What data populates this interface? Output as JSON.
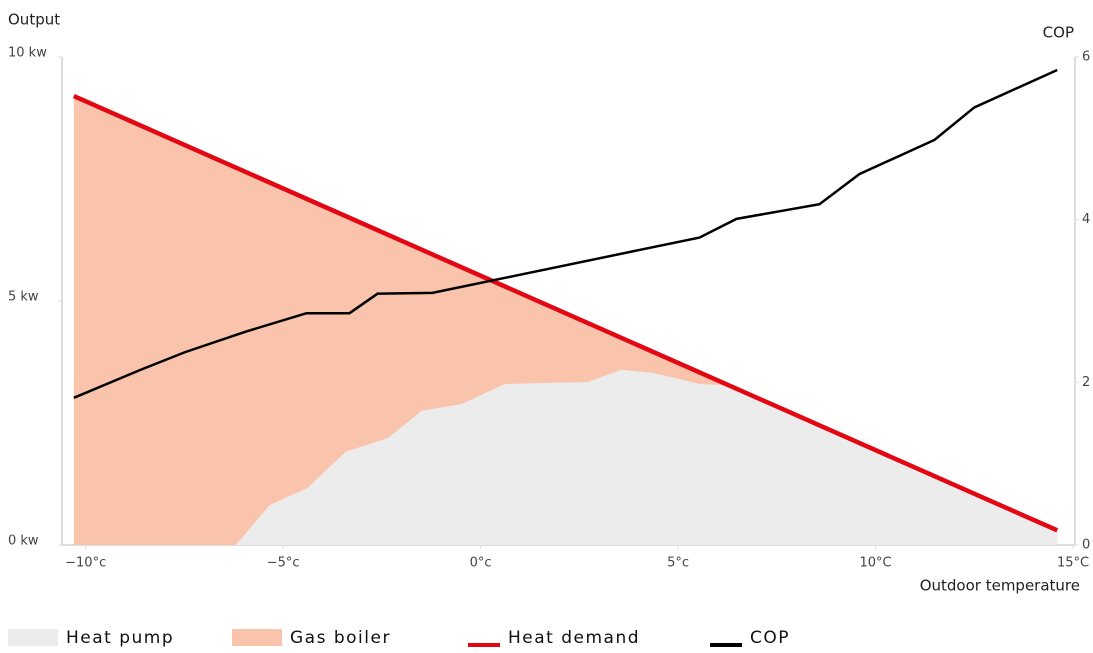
{
  "chart_data": {
    "type": "line",
    "ylabel": "Output",
    "y2label": "COP",
    "xlabel": "Outdoor temperature",
    "xlim": [
      -10.6,
      15.05
    ],
    "xticks": [
      {
        "value": -10,
        "label": "−10°c"
      },
      {
        "value": -5,
        "label": "−5°c"
      },
      {
        "value": 0,
        "label": "0°c"
      },
      {
        "value": 5,
        "label": "5°c"
      },
      {
        "value": 10,
        "label": "10°C"
      },
      {
        "value": 15,
        "label": "15°C"
      }
    ],
    "ylim": [
      0,
      10
    ],
    "yticks": [
      {
        "value": 0,
        "label": "0 kw"
      },
      {
        "value": 5,
        "label": "5 kw"
      },
      {
        "value": 10,
        "label": "10 kw"
      }
    ],
    "y2lim": [
      0,
      6
    ],
    "y2ticks": [
      0,
      2,
      4,
      6
    ],
    "grid": false,
    "series": [
      {
        "name": "Heat pump",
        "kind": "area",
        "color": "#ececec",
        "x": [
          -10.3,
          -6.2,
          -5.34,
          -4.38,
          -3.42,
          -2.35,
          -1.49,
          -0.48,
          0.61,
          2.71,
          3.57,
          4.41,
          5.54,
          6.3,
          14.6
        ],
        "values": [
          0,
          0,
          0.82,
          1.17,
          1.91,
          2.19,
          2.75,
          2.89,
          3.3,
          3.34,
          3.59,
          3.52,
          3.3,
          3.27,
          0.3
        ]
      },
      {
        "name": "Gas boiler",
        "kind": "area",
        "color": "#f9c4ab",
        "x": [
          -10.3,
          14.6
        ],
        "values": [
          9.2,
          0.3
        ]
      },
      {
        "name": "Heat demand",
        "kind": "line",
        "color": "#e30613",
        "x": [
          -10.3,
          14.6
        ],
        "values": [
          9.2,
          0.3
        ]
      },
      {
        "name": "COP",
        "kind": "line",
        "color": "#000000",
        "axis": "y2",
        "x": [
          -10.3,
          -8.63,
          -7.49,
          -5.97,
          -4.41,
          -3.32,
          -2.61,
          -1.22,
          5.54,
          6.48,
          8.58,
          9.59,
          11.49,
          12.5,
          14.6
        ],
        "values": [
          1.81,
          2.15,
          2.37,
          2.62,
          2.85,
          2.85,
          3.09,
          3.1,
          3.78,
          4.01,
          4.19,
          4.56,
          4.98,
          5.38,
          5.84
        ]
      }
    ]
  }
}
